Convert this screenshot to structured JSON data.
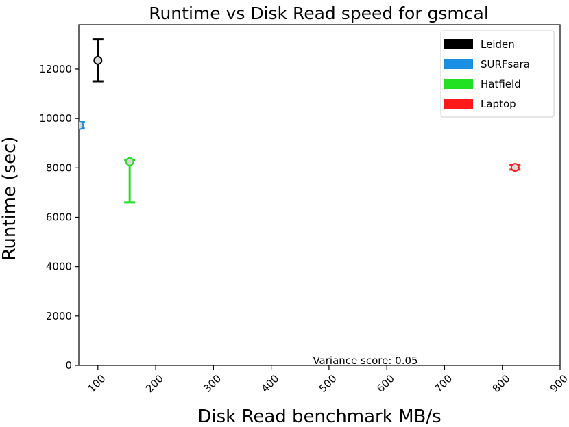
{
  "chart_data": {
    "type": "scatter",
    "title": "Runtime vs Disk Read speed for gsmcal",
    "xlabel": "Disk Read benchmark MB/s",
    "ylabel": "Runtime (sec)",
    "xlim": [
      67,
      900
    ],
    "ylim": [
      0,
      13800
    ],
    "xticks": [
      100,
      200,
      300,
      400,
      500,
      600,
      700,
      800,
      900
    ],
    "yticks": [
      0,
      2000,
      4000,
      6000,
      8000,
      10000,
      12000
    ],
    "grid": false,
    "legend_position": "top-right",
    "annotation": "Variance score: 0.05",
    "series": [
      {
        "name": "Leiden",
        "color": "#000000",
        "x": 100,
        "y": 12350,
        "ymin": 11500,
        "ymax": 13200
      },
      {
        "name": "SURFsara",
        "color": "#1a8ee0",
        "x": 68,
        "y": 9720,
        "ymin": 9600,
        "ymax": 9850
      },
      {
        "name": "Hatfield",
        "color": "#22e022",
        "x": 155,
        "y": 8250,
        "ymin": 6600,
        "ymax": 8300
      },
      {
        "name": "Laptop",
        "color": "#ff1a1a",
        "x": 822,
        "y": 8020,
        "ymin": 7930,
        "ymax": 8110
      }
    ]
  }
}
